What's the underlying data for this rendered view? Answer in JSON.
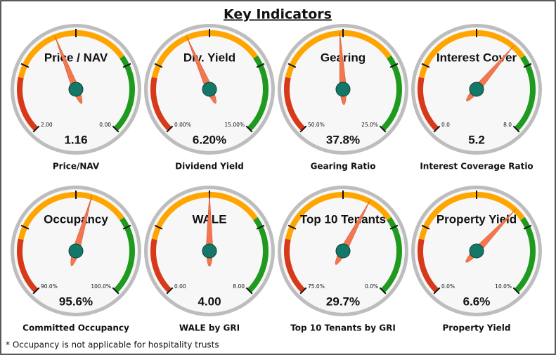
{
  "title": "Key Indicators",
  "footnote": "* Occupancy is not applicable for hospitality trusts",
  "chart_data": [
    {
      "type": "gauge",
      "title": "Price / NAV",
      "caption": "Price/NAV",
      "ylim": [
        2,
        0
      ],
      "yticks": [
        {
          "value": 2,
          "label": "2.00"
        },
        {
          "value": 0,
          "label": "0.00"
        }
      ],
      "values": [
        1.16
      ]
    },
    {
      "type": "gauge",
      "title": "Div. Yield",
      "caption": "Dividend Yield",
      "ylim": [
        0,
        15
      ],
      "yticks": [
        {
          "value": 0,
          "label": "0.00%"
        },
        {
          "value": 15,
          "label": "15.00%"
        }
      ],
      "values": [
        6.2
      ],
      "value_labels": [
        "6.20%"
      ]
    },
    {
      "type": "gauge",
      "title": "Gearing",
      "caption": "Gearing Ratio",
      "ylim": [
        50,
        25
      ],
      "yticks": [
        {
          "value": 50,
          "label": "50.0%"
        },
        {
          "value": 25,
          "label": "25.0%"
        }
      ],
      "values": [
        37.8
      ],
      "value_labels": [
        "37.8%"
      ]
    },
    {
      "type": "gauge",
      "title": "Interest Cover",
      "caption": "Interest Coverage Ratio",
      "ylim": [
        0,
        8
      ],
      "yticks": [
        {
          "value": 0,
          "label": "0.0"
        },
        {
          "value": 8,
          "label": "8.0"
        }
      ],
      "values": [
        5.2
      ]
    },
    {
      "type": "gauge",
      "title": "Occupancy",
      "caption": "Committed Occupancy",
      "ylim": [
        90,
        100
      ],
      "yticks": [
        {
          "value": 90,
          "label": "90.0%"
        },
        {
          "value": 100,
          "label": "100.0%"
        }
      ],
      "values": [
        95.6
      ],
      "value_labels": [
        "95.6%"
      ]
    },
    {
      "type": "gauge",
      "title": "WALE",
      "caption": "WALE by GRI",
      "ylim": [
        0,
        8
      ],
      "yticks": [
        {
          "value": 0,
          "label": "0.00"
        },
        {
          "value": 8,
          "label": "8.00"
        }
      ],
      "values": [
        4
      ],
      "value_labels": [
        "4.00"
      ]
    },
    {
      "type": "gauge",
      "title": "Top 10 Tenants",
      "caption": "Top 10 Tenants by GRI",
      "ylim": [
        75,
        0
      ],
      "yticks": [
        {
          "value": 75,
          "label": "75.0%"
        },
        {
          "value": 0,
          "label": "0.0%"
        }
      ],
      "values": [
        29.7
      ],
      "value_labels": [
        "29.7%"
      ]
    },
    {
      "type": "gauge",
      "title": "Property Yield",
      "caption": "Property Yield",
      "ylim": [
        0,
        10
      ],
      "yticks": [
        {
          "value": 0,
          "label": "0.0%"
        },
        {
          "value": 10,
          "label": "10.0%"
        }
      ],
      "values": [
        6.6
      ],
      "value_labels": [
        "6.6%"
      ]
    }
  ]
}
